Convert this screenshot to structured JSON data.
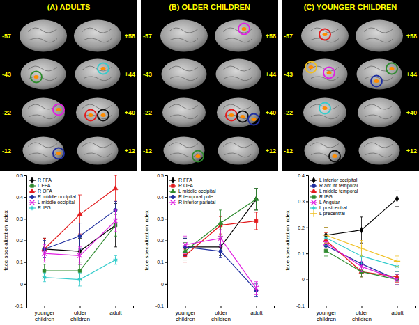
{
  "chart_data": [
    {
      "type": "line",
      "title": "(A) ADULTS",
      "annotations": {
        "left": [
          "-57",
          "-43",
          "-22",
          "-12"
        ],
        "right": [
          "+58",
          "+44",
          "+40",
          "+12"
        ]
      },
      "categories": [
        "younger children",
        "older children",
        "adult"
      ],
      "ylabel": "face specialization index",
      "ylim": [
        -0.1,
        0.5
      ],
      "yticks": [
        -0.1,
        0,
        0.1,
        0.2,
        0.3,
        0.4,
        0.5
      ],
      "legend": "upper left",
      "series": [
        {
          "name": "R FFA",
          "color": "#000000",
          "marker": "diamond",
          "values": [
            0.16,
            0.15,
            0.27
          ],
          "errors": [
            0.05,
            0.06,
            0.1
          ]
        },
        {
          "name": "L FFA",
          "color": "#2e8b2e",
          "marker": "square",
          "values": [
            0.06,
            0.06,
            0.27
          ],
          "errors": [
            0.03,
            0.04,
            0.05
          ]
        },
        {
          "name": "R OFA",
          "color": "#e31a1c",
          "marker": "triangle",
          "values": [
            0.16,
            0.32,
            0.44
          ],
          "errors": [
            0.05,
            0.09,
            0.06
          ]
        },
        {
          "name": "R middle occipital",
          "color": "#1f2fa0",
          "marker": "circle",
          "values": [
            0.16,
            0.22,
            0.34
          ],
          "errors": [
            0.04,
            0.06,
            0.04
          ]
        },
        {
          "name": "L middle occipital",
          "color": "#e020e0",
          "marker": "x",
          "values": [
            0.14,
            0.13,
            0.29
          ],
          "errors": [
            0.04,
            0.04,
            0.05
          ]
        },
        {
          "name": "R IFG",
          "color": "#33cccc",
          "marker": "asterisk",
          "values": [
            0.03,
            0.02,
            0.11
          ],
          "errors": [
            0.02,
            0.03,
            0.02
          ]
        }
      ]
    },
    {
      "type": "line",
      "title": "(B) OLDER CHILDREN",
      "annotations": {
        "left": [
          "-57",
          "-43",
          "-22",
          "-12"
        ],
        "right": [
          "+58",
          "+44",
          "+40",
          "+12"
        ]
      },
      "categories": [
        "younger children",
        "older children",
        "adult"
      ],
      "ylabel": "face specialization index",
      "ylim": [
        -0.1,
        0.5
      ],
      "yticks": [
        -0.1,
        0,
        0.1,
        0.2,
        0.3,
        0.4,
        0.5
      ],
      "legend": "upper left",
      "series": [
        {
          "name": "R FFA",
          "color": "#000000",
          "marker": "diamond",
          "values": [
            0.17,
            0.17,
            0.39
          ],
          "errors": [
            0.04,
            0.04,
            0.05
          ]
        },
        {
          "name": "R OFA",
          "color": "#e31a1c",
          "marker": "square",
          "values": [
            0.13,
            0.27,
            0.29
          ],
          "errors": [
            0.03,
            0.04,
            0.04
          ]
        },
        {
          "name": "L middle occipital",
          "color": "#2e8b2e",
          "marker": "triangle",
          "values": [
            0.15,
            0.28,
            0.39
          ],
          "errors": [
            0.04,
            0.06,
            0.05
          ]
        },
        {
          "name": "R temporal pole",
          "color": "#1f2fa0",
          "marker": "circle",
          "values": [
            0.17,
            0.15,
            -0.03
          ],
          "errors": [
            0.04,
            0.03,
            0.03
          ]
        },
        {
          "name": "R inferior parietal",
          "color": "#e020e0",
          "marker": "x",
          "values": [
            0.18,
            0.21,
            -0.02
          ],
          "errors": [
            0.04,
            0.04,
            0.03
          ]
        }
      ]
    },
    {
      "type": "line",
      "title": "(C) YOUNGER CHILDREN",
      "annotations": {
        "left": [
          "-57",
          "-43",
          "-22",
          "-12"
        ],
        "right": [
          "+58",
          "+44",
          "+40",
          "+12"
        ]
      },
      "categories": [
        "younger children",
        "older children",
        "adult"
      ],
      "ylabel": "face specialization index",
      "ylim": [
        -0.1,
        0.4
      ],
      "yticks": [
        -0.1,
        0,
        0.1,
        0.2,
        0.3,
        0.4
      ],
      "legend": "upper left",
      "series": [
        {
          "name": "L inferior occipital",
          "color": "#000000",
          "marker": "diamond",
          "values": [
            0.17,
            0.19,
            0.31
          ],
          "errors": [
            0.03,
            0.05,
            0.03
          ]
        },
        {
          "name": "R ant inf temporal",
          "color": "#1f2fa0",
          "marker": "circle",
          "values": [
            0.13,
            0.06,
            0.0
          ],
          "errors": [
            0.02,
            0.03,
            0.02
          ]
        },
        {
          "name": "L middle temporal",
          "color": "#e31a1c",
          "marker": "triangle",
          "values": [
            0.15,
            0.03,
            0.01
          ],
          "errors": [
            0.03,
            0.02,
            0.02
          ]
        },
        {
          "name": "R IFG",
          "color": "#2e8b2e",
          "marker": "square",
          "values": [
            0.11,
            0.03,
            0.0
          ],
          "errors": [
            0.02,
            0.02,
            0.02
          ]
        },
        {
          "name": "L Angular",
          "color": "#e020e0",
          "marker": "x",
          "values": [
            0.14,
            0.05,
            0.0
          ],
          "errors": [
            0.03,
            0.02,
            0.02
          ]
        },
        {
          "name": "L postcentral",
          "color": "#33cccc",
          "marker": "asterisk",
          "values": [
            0.16,
            0.09,
            0.05
          ],
          "errors": [
            0.03,
            0.03,
            0.02
          ]
        },
        {
          "name": "L precentral",
          "color": "#f0c020",
          "marker": "plus",
          "values": [
            0.17,
            0.12,
            0.07
          ],
          "errors": [
            0.03,
            0.03,
            0.02
          ]
        }
      ]
    }
  ]
}
